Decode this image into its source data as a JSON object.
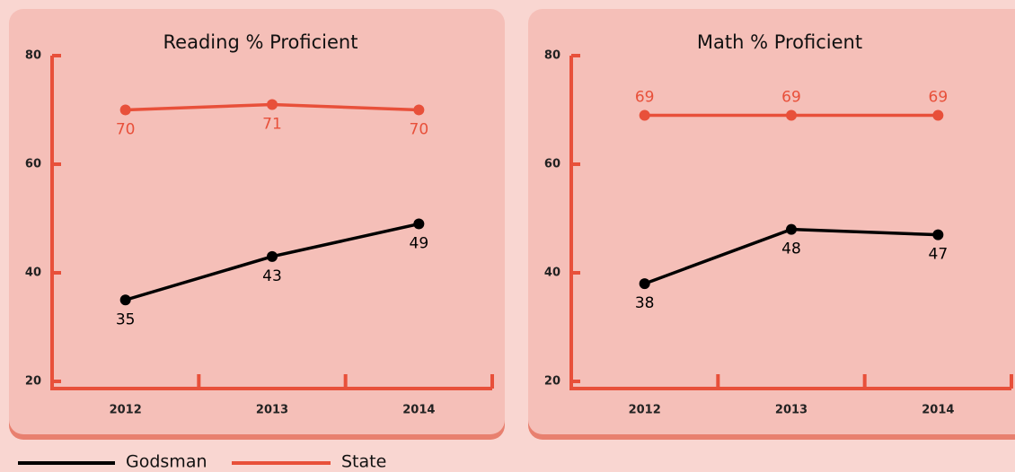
{
  "chart_data": [
    {
      "type": "line",
      "title": "Reading % Proficient",
      "categories": [
        "2012",
        "2013",
        "2014"
      ],
      "series": [
        {
          "name": "Godsman",
          "color": "#000000",
          "values": [
            35,
            43,
            49
          ]
        },
        {
          "name": "State",
          "color": "#e8503a",
          "values": [
            70,
            71,
            70
          ]
        }
      ],
      "ylim": [
        20,
        80
      ],
      "yticks": [
        20,
        40,
        60,
        80
      ]
    },
    {
      "type": "line",
      "title": "Math % Proficient",
      "categories": [
        "2012",
        "2013",
        "2014"
      ],
      "series": [
        {
          "name": "Godsman",
          "color": "#000000",
          "values": [
            38,
            48,
            47
          ]
        },
        {
          "name": "State",
          "color": "#e8503a",
          "values": [
            69,
            69,
            69
          ]
        }
      ],
      "ylim": [
        20,
        80
      ],
      "yticks": [
        20,
        40,
        60,
        80
      ]
    }
  ]
}
